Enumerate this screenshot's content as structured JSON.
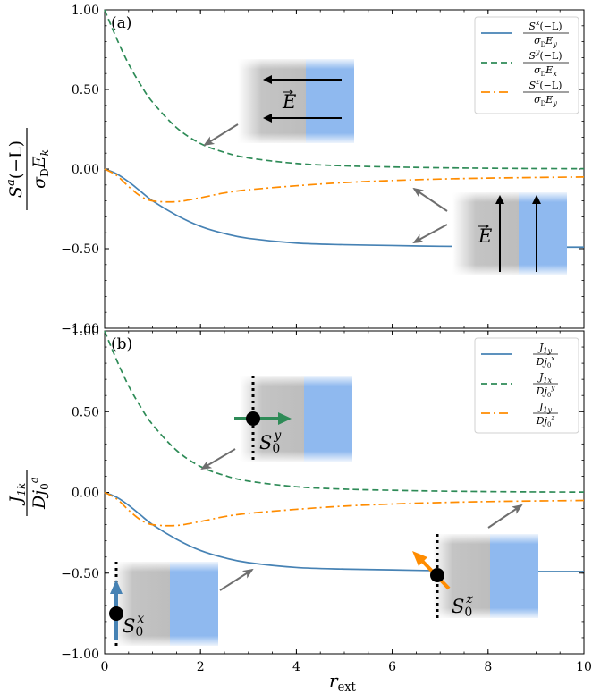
{
  "chart_data": [
    {
      "type": "line",
      "panel_label": "(a)",
      "xlabel": "",
      "ylabel": "S^a(−L) / σ_D E_k",
      "ylabel_num": "S",
      "ylabel_sup": "a",
      "ylabel_arg": "(−L)",
      "ylabel_den": "σ",
      "ylabel_den_sub": "D",
      "ylabel_den_rest": "E",
      "ylabel_den_sub2": "k",
      "xlim": [
        0,
        10
      ],
      "ylim": [
        -1.0,
        1.0
      ],
      "yticks": [
        "1.00",
        "0.50",
        "0.00",
        "−0.50",
        "−1.00"
      ],
      "xticks": [
        "0",
        "2",
        "4",
        "6",
        "8",
        "10"
      ],
      "legend_position": "top-right",
      "series": [
        {
          "name": "S^x(−L) / σ_D E_y",
          "num": "S",
          "sup": "x",
          "arg": "(−L)",
          "den": "σ",
          "den_sub": "D",
          "den_e": "E",
          "den_sub2": "y",
          "color": "#4682b4",
          "style": "solid",
          "x": [
            0,
            0.25,
            0.5,
            0.75,
            1,
            1.5,
            2,
            2.5,
            3,
            4,
            5,
            6,
            7,
            8,
            9,
            10
          ],
          "y": [
            0.0,
            -0.03,
            -0.08,
            -0.14,
            -0.2,
            -0.29,
            -0.36,
            -0.405,
            -0.435,
            -0.465,
            -0.475,
            -0.48,
            -0.485,
            -0.487,
            -0.49,
            -0.49
          ]
        },
        {
          "name": "S^y(−L) / σ_D E_x",
          "num": "S",
          "sup": "y",
          "arg": "(−L)",
          "den": "σ",
          "den_sub": "D",
          "den_e": "E",
          "den_sub2": "x",
          "color": "#2e8b57",
          "style": "dashed",
          "x": [
            0,
            0.25,
            0.5,
            0.75,
            1,
            1.5,
            2,
            2.5,
            3,
            4,
            5,
            6,
            7,
            8,
            9,
            10
          ],
          "y": [
            1.0,
            0.82,
            0.66,
            0.53,
            0.42,
            0.26,
            0.16,
            0.105,
            0.07,
            0.035,
            0.02,
            0.013,
            0.008,
            0.005,
            0.003,
            0.002
          ]
        },
        {
          "name": "S^z(−L) / σ_D E_y",
          "num": "S",
          "sup": "z",
          "arg": "(−L)",
          "den": "σ",
          "den_sub": "D",
          "den_e": "E",
          "den_sub2": "y",
          "color": "#ff8c00",
          "style": "dashdot",
          "x": [
            0,
            0.25,
            0.5,
            0.75,
            1,
            1.5,
            2,
            2.5,
            3,
            4,
            5,
            6,
            7,
            8,
            9,
            10
          ],
          "y": [
            0.0,
            -0.04,
            -0.11,
            -0.17,
            -0.2,
            -0.205,
            -0.18,
            -0.15,
            -0.13,
            -0.105,
            -0.085,
            -0.072,
            -0.063,
            -0.057,
            -0.053,
            -0.05
          ]
        }
      ]
    },
    {
      "type": "line",
      "panel_label": "(b)",
      "xlabel": "r_ext",
      "xlabel_main": "r",
      "xlabel_sub": "ext",
      "ylabel": "J_1k / D j_0^a",
      "ylabel_num": "J",
      "ylabel_num_sub": "1k",
      "ylabel_den": "Dj",
      "ylabel_den_sub": "0",
      "ylabel_den_sup": "a",
      "xlim": [
        0,
        10
      ],
      "ylim": [
        -1.0,
        1.0
      ],
      "yticks": [
        "1.00",
        "0.50",
        "0.00",
        "−0.50",
        "−1.00"
      ],
      "xticks": [
        "0",
        "2",
        "4",
        "6",
        "8",
        "10"
      ],
      "legend_position": "top-right",
      "series": [
        {
          "name": "J_1y / D j_0^x",
          "num": "J",
          "num_sub": "1y",
          "den": "Dj",
          "den_sub": "0",
          "den_sup": "x",
          "color": "#4682b4",
          "style": "solid",
          "x": [
            0,
            0.25,
            0.5,
            0.75,
            1,
            1.5,
            2,
            2.5,
            3,
            4,
            5,
            6,
            7,
            8,
            9,
            10
          ],
          "y": [
            0.0,
            -0.03,
            -0.08,
            -0.14,
            -0.2,
            -0.29,
            -0.36,
            -0.405,
            -0.435,
            -0.465,
            -0.475,
            -0.48,
            -0.485,
            -0.487,
            -0.49,
            -0.49
          ]
        },
        {
          "name": "J_1x / D j_0^y",
          "num": "J",
          "num_sub": "1x",
          "den": "Dj",
          "den_sub": "0",
          "den_sup": "y",
          "color": "#2e8b57",
          "style": "dashed",
          "x": [
            0,
            0.25,
            0.5,
            0.75,
            1,
            1.5,
            2,
            2.5,
            3,
            4,
            5,
            6,
            7,
            8,
            9,
            10
          ],
          "y": [
            1.0,
            0.82,
            0.66,
            0.53,
            0.42,
            0.26,
            0.16,
            0.105,
            0.07,
            0.035,
            0.02,
            0.013,
            0.008,
            0.005,
            0.003,
            0.002
          ]
        },
        {
          "name": "J_1y / D j_0^z",
          "num": "J",
          "num_sub": "1y",
          "den": "Dj",
          "den_sub": "0",
          "den_sup": "z",
          "color": "#ff8c00",
          "style": "dashdot",
          "x": [
            0,
            0.25,
            0.5,
            0.75,
            1,
            1.5,
            2,
            2.5,
            3,
            4,
            5,
            6,
            7,
            8,
            9,
            10
          ],
          "y": [
            0.0,
            -0.04,
            -0.11,
            -0.17,
            -0.2,
            -0.205,
            -0.18,
            -0.15,
            -0.13,
            -0.105,
            -0.085,
            -0.072,
            -0.063,
            -0.057,
            -0.053,
            -0.05
          ]
        }
      ]
    }
  ],
  "insets": {
    "a1_label": "E",
    "a2_label": "E",
    "b1_label": "S",
    "b1_sub": "0",
    "b1_sup": "y",
    "b2_label": "S",
    "b2_sub": "0",
    "b2_sup": "x",
    "b3_label": "S",
    "b3_sub": "0",
    "b3_sup": "z"
  },
  "colors": {
    "blue": "#4682b4",
    "green": "#2e8b57",
    "orange": "#ff8c00",
    "bar_blue": "#8fb9ef",
    "pointer_gray": "#6e6e6e"
  }
}
